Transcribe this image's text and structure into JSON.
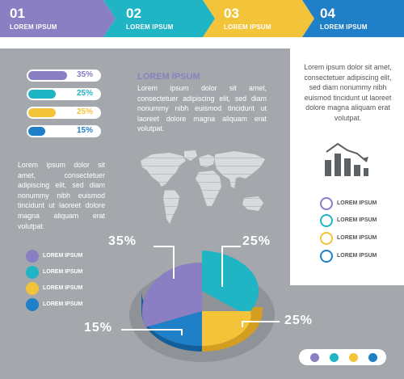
{
  "steps": [
    {
      "num": "01",
      "label": "LOREM IPSUM"
    },
    {
      "num": "02",
      "label": "LOREM IPSUM"
    },
    {
      "num": "03",
      "label": "LOREM IPSUM"
    },
    {
      "num": "04",
      "label": "LOREM IPSUM"
    }
  ],
  "bars": [
    {
      "label": "35%",
      "fraction": 0.35
    },
    {
      "label": "25%",
      "fraction": 0.25
    },
    {
      "label": "25%",
      "fraction": 0.25
    },
    {
      "label": "15%",
      "fraction": 0.15
    }
  ],
  "center_title": "LOREM IPSUM",
  "center_text": "Lorem ipsum dolor sit amet, consectetuer adipiscing elit, sed diam nonummy nibh euismod tincidunt ut laoreet dolore magna aliquam erat volutpat.",
  "left_text": "Lorem ipsum dolor sit amet, consectetuer adipiscing elit, sed diam nonummy nibh euismod tincidunt ut laoreet dolore magna aliquam erat volutpat.",
  "right_text": "Lorem ipsum dolor sit amet, consectetuer adipiscing elit, sed diam nonummy nibh euismod tincidunt ut laoreet dolore magna aliquam erat volutpat.",
  "right_legend": [
    "LOREM IPSUM",
    "LOREM IPSUM",
    "LOREM IPSUM",
    "LOREM IPSUM"
  ],
  "left_legend": [
    "LOREM IPSUM",
    "LOREM IPSUM",
    "LOREM IPSUM",
    "LOREM IPSUM"
  ],
  "pie": {
    "labels": {
      "top_left": "35%",
      "top_right": "25%",
      "bottom_left": "15%",
      "bottom_right": "25%"
    }
  },
  "colors": {
    "purple": "#8a7fc2",
    "teal": "#1fb5c4",
    "yellow": "#f3c33a",
    "blue": "#1f7fc7",
    "gray": "#a4a7ac"
  },
  "icons": {
    "chart": "bar-chart-down-icon",
    "map": "world-map-icon",
    "person": "person-icon"
  }
}
